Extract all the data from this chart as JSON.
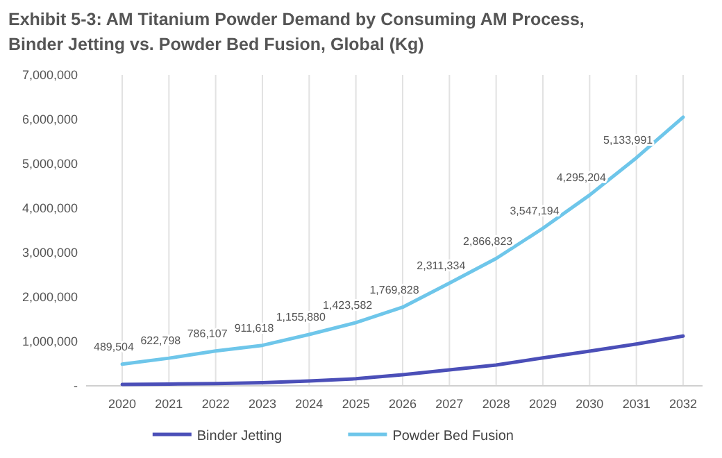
{
  "chart_data": {
    "type": "line",
    "title": "Exhibit 5-3: AM Titanium Powder Demand by Consuming AM Process,",
    "subtitle": "Binder Jetting vs. Powder Bed Fusion, Global (Kg)",
    "categories": [
      "2020",
      "2021",
      "2022",
      "2023",
      "2024",
      "2025",
      "2026",
      "2027",
      "2028",
      "2029",
      "2030",
      "2031",
      "2032"
    ],
    "series": [
      {
        "name": "Binder Jetting",
        "color": "#4b4fb8",
        "values": [
          30000,
          40000,
          50000,
          70000,
          110000,
          160000,
          250000,
          360000,
          470000,
          630000,
          780000,
          940000,
          1120000
        ]
      },
      {
        "name": "Powder Bed Fusion",
        "color": "#6ec6ea",
        "values": [
          489504,
          622798,
          786107,
          911618,
          1155880,
          1423582,
          1769828,
          2311334,
          2866823,
          3547194,
          4295204,
          5133991,
          6050000
        ],
        "value_labels": [
          "489,504",
          "622,798",
          "786,107",
          "911,618",
          "1,155,880",
          "1,423,582",
          "1,769,828",
          "2,311,334",
          "2,866,823",
          "3,547,194",
          "4,295,204",
          "5,133,991",
          null
        ]
      }
    ],
    "ylim": [
      0,
      7000000
    ],
    "yticks": [
      {
        "value": 0,
        "label": "-"
      },
      {
        "value": 1000000,
        "label": "1,000,000"
      },
      {
        "value": 2000000,
        "label": "2,000,000"
      },
      {
        "value": 3000000,
        "label": "3,000,000"
      },
      {
        "value": 4000000,
        "label": "4,000,000"
      },
      {
        "value": 5000000,
        "label": "5,000,000"
      },
      {
        "value": 6000000,
        "label": "6,000,000"
      },
      {
        "value": 7000000,
        "label": "7,000,000"
      }
    ],
    "grid": "x",
    "legend": "bottom",
    "marker": "none",
    "line_style": "solid"
  }
}
